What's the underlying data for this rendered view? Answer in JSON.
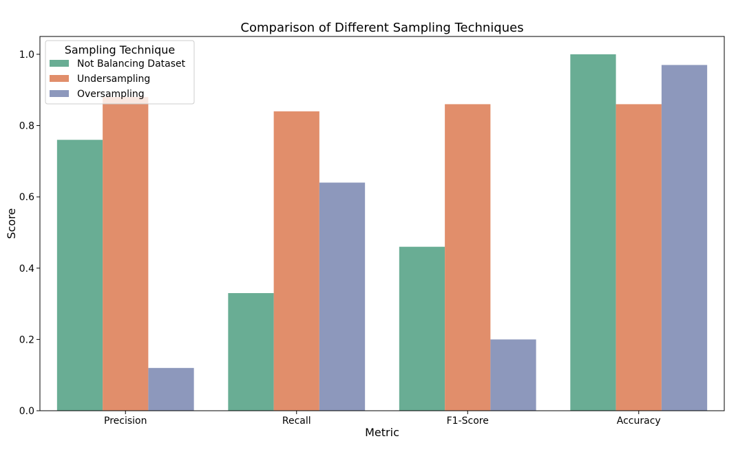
{
  "chart_data": {
    "type": "bar",
    "title": "Comparison of Different Sampling Techniques",
    "xlabel": "Metric",
    "ylabel": "Score",
    "categories": [
      "Precision",
      "Recall",
      "F1-Score",
      "Accuracy"
    ],
    "ylim": [
      0,
      1.05
    ],
    "yticks": [
      "0.0",
      "0.2",
      "0.4",
      "0.6",
      "0.8",
      "1.0"
    ],
    "grid": false,
    "legend": {
      "title": "Sampling Technique",
      "placement": "top-left"
    },
    "series": [
      {
        "name": "Not Balancing Dataset",
        "color": "#69AD94",
        "values": [
          0.76,
          0.33,
          0.46,
          1.0
        ]
      },
      {
        "name": "Undersampling",
        "color": "#E18E6B",
        "values": [
          0.88,
          0.84,
          0.86,
          0.86
        ]
      },
      {
        "name": "Oversampling",
        "color": "#8D98BC",
        "values": [
          0.12,
          0.64,
          0.2,
          0.97
        ]
      }
    ]
  }
}
